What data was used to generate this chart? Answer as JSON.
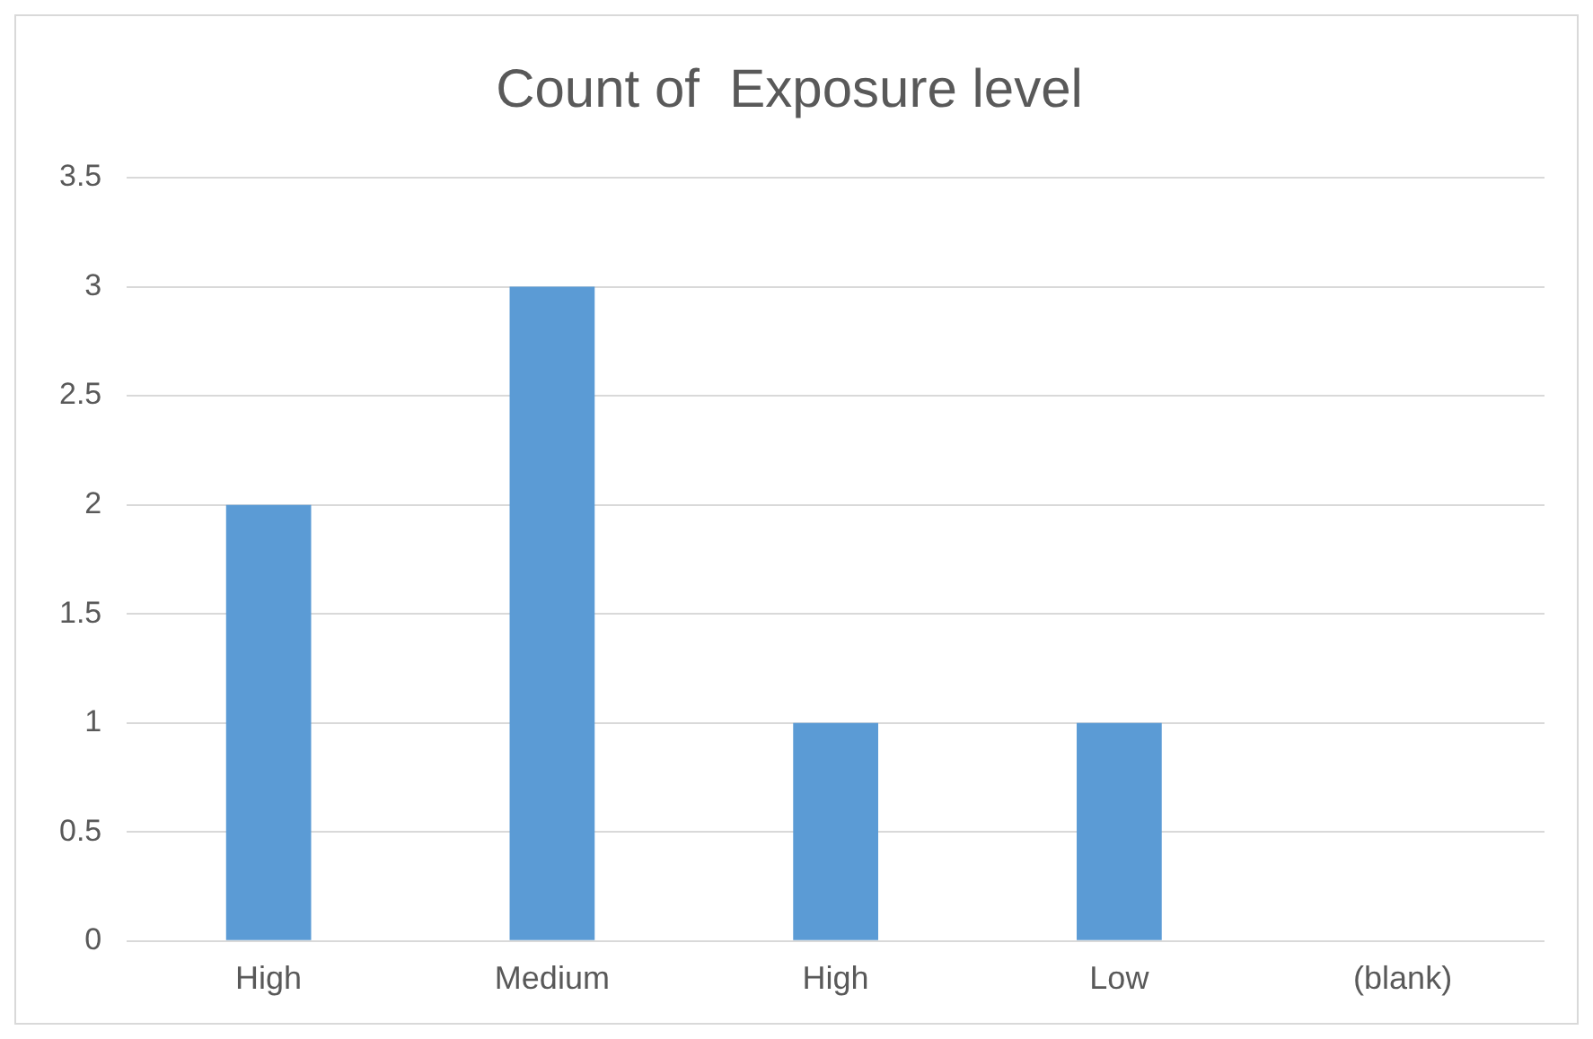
{
  "chart_data": {
    "type": "bar",
    "title": "Count of  Exposure level",
    "categories": [
      "High",
      "Medium",
      "High",
      "Low",
      "(blank)"
    ],
    "values": [
      2,
      3,
      1,
      1,
      null
    ],
    "color": "#5b9bd5",
    "ylim": [
      0,
      3.5
    ],
    "yticks": [
      0,
      0.5,
      1,
      1.5,
      2,
      2.5,
      3,
      3.5
    ],
    "grid": "y"
  }
}
